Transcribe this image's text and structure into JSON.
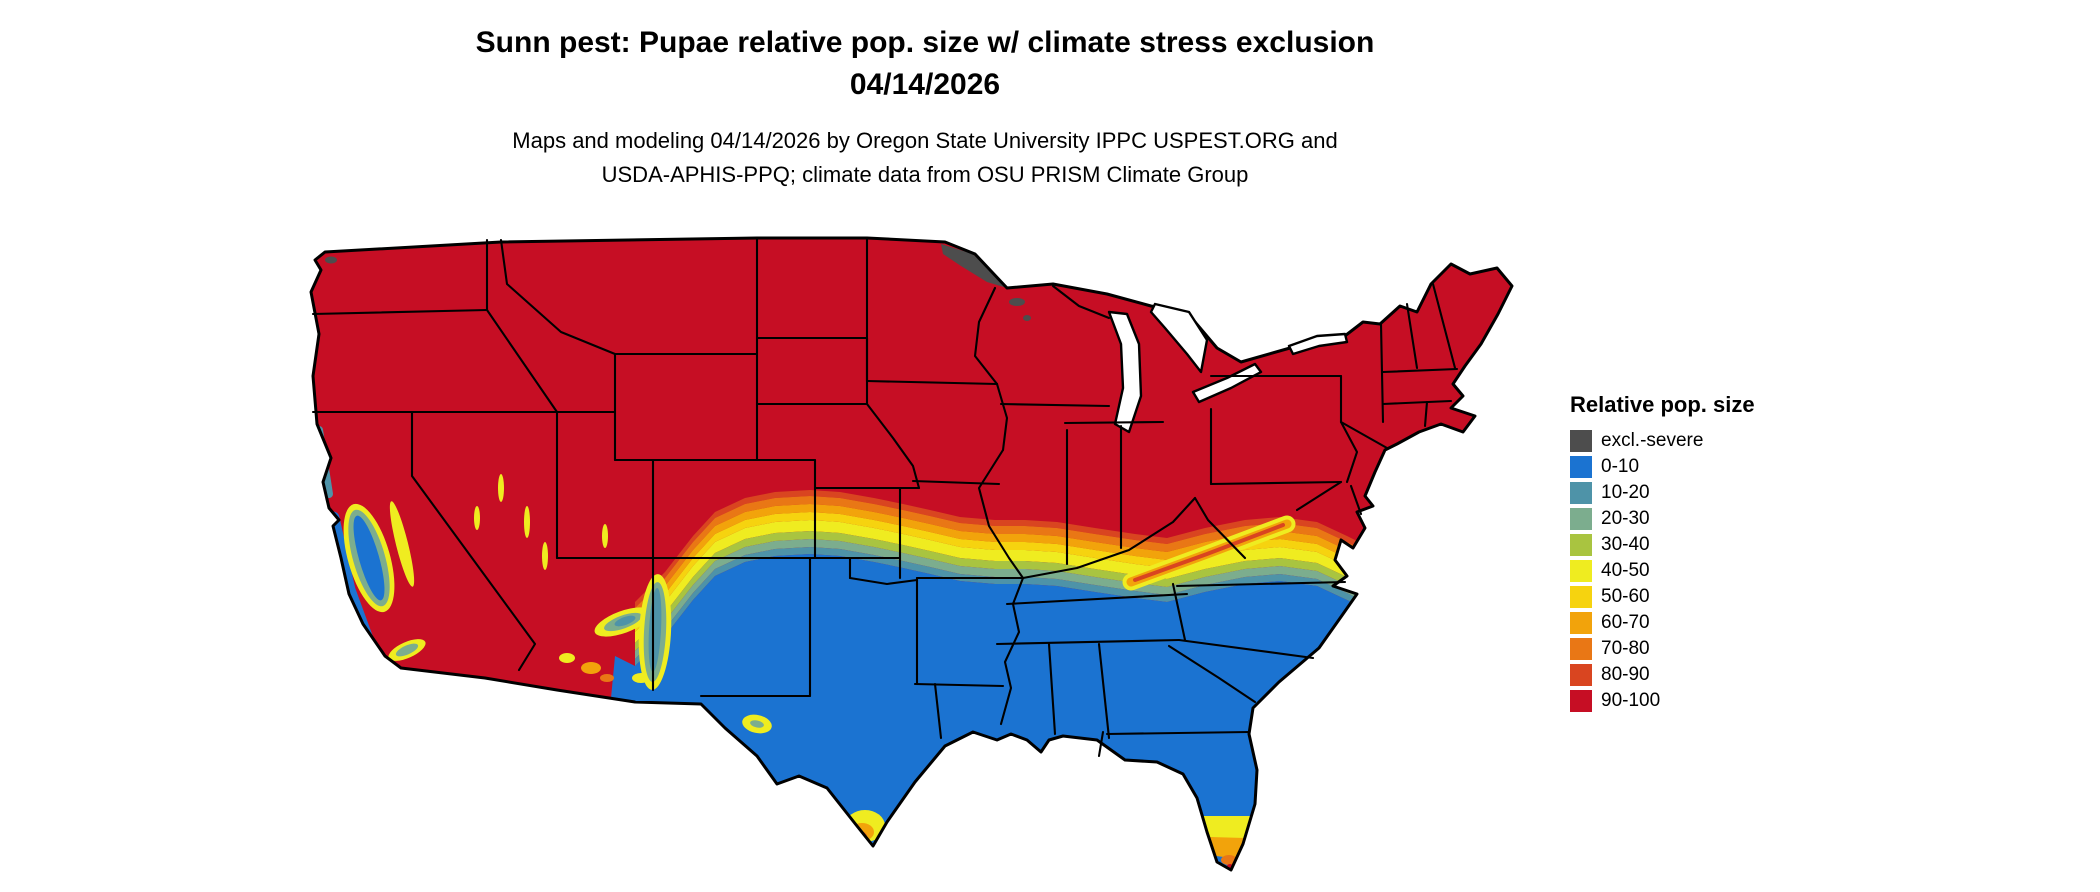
{
  "title": {
    "line1": "Sunn pest: Pupae relative pop. size w/ climate stress exclusion",
    "line2": "04/14/2026"
  },
  "subtitle": {
    "line1": "Maps and modeling 04/14/2026 by Oregon State University IPPC USPEST.ORG and",
    "line2": "USDA-APHIS-PPQ; climate data from OSU PRISM Climate Group"
  },
  "legend": {
    "title": "Relative pop. size",
    "entries": [
      {
        "label": "excl.-severe",
        "color": "#4d4d4d"
      },
      {
        "label": "0-10",
        "color": "#1b73d1"
      },
      {
        "label": "10-20",
        "color": "#4e93a8"
      },
      {
        "label": "20-30",
        "color": "#7cad8e"
      },
      {
        "label": "30-40",
        "color": "#a9c440"
      },
      {
        "label": "40-50",
        "color": "#efec20"
      },
      {
        "label": "50-60",
        "color": "#f6d30f"
      },
      {
        "label": "60-70",
        "color": "#f2a30b"
      },
      {
        "label": "70-80",
        "color": "#e97715"
      },
      {
        "label": "80-90",
        "color": "#d94520"
      },
      {
        "label": "90-100",
        "color": "#c60e24"
      }
    ]
  },
  "map": {
    "border_color": "#000000",
    "water_color": "#ffffff"
  }
}
